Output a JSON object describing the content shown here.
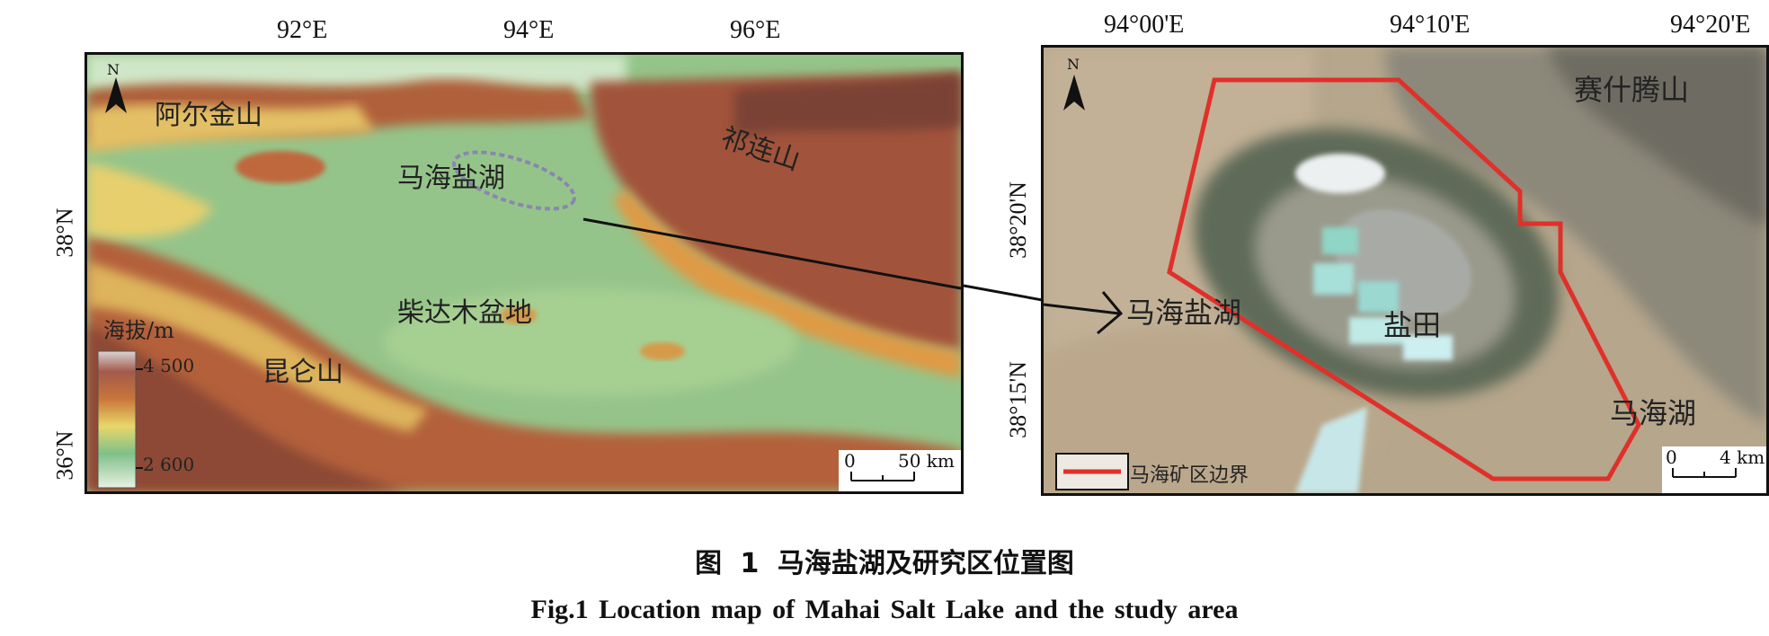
{
  "left_map": {
    "x_ticks": [
      "92°E",
      "94°E",
      "96°E"
    ],
    "y_ticks": [
      "38°N",
      "36°N"
    ],
    "north_label": "N",
    "places": {
      "altun": "阿尔金山",
      "qilian": "祁连山",
      "mahai_lake": "马海盐湖",
      "qaidam": "柴达木盆地",
      "kunlun": "昆仑山"
    },
    "legend": {
      "title": "海拔/m",
      "high": "4 500",
      "low": "2 600"
    },
    "scalebar": {
      "zero": "0",
      "value": "50 km"
    }
  },
  "right_map": {
    "x_ticks": [
      "94°00'E",
      "94°10'E",
      "94°20'E"
    ],
    "y_ticks": [
      "38°20'N",
      "38°15'N"
    ],
    "north_label": "N",
    "places": {
      "saishiteng": "赛什腾山",
      "mahai_lake": "马海盐湖",
      "salt_field": "盐田",
      "mahai_hu": "马海湖"
    },
    "legend": {
      "boundary": "马海矿区边界",
      "boundary_color": "#e0302a"
    },
    "scalebar": {
      "zero": "0",
      "value": "4 km"
    }
  },
  "caption": {
    "cn": "图 1 马海盐湖及研究区位置图",
    "en": "Fig.1 Location map of Mahai Salt Lake and the study area"
  }
}
